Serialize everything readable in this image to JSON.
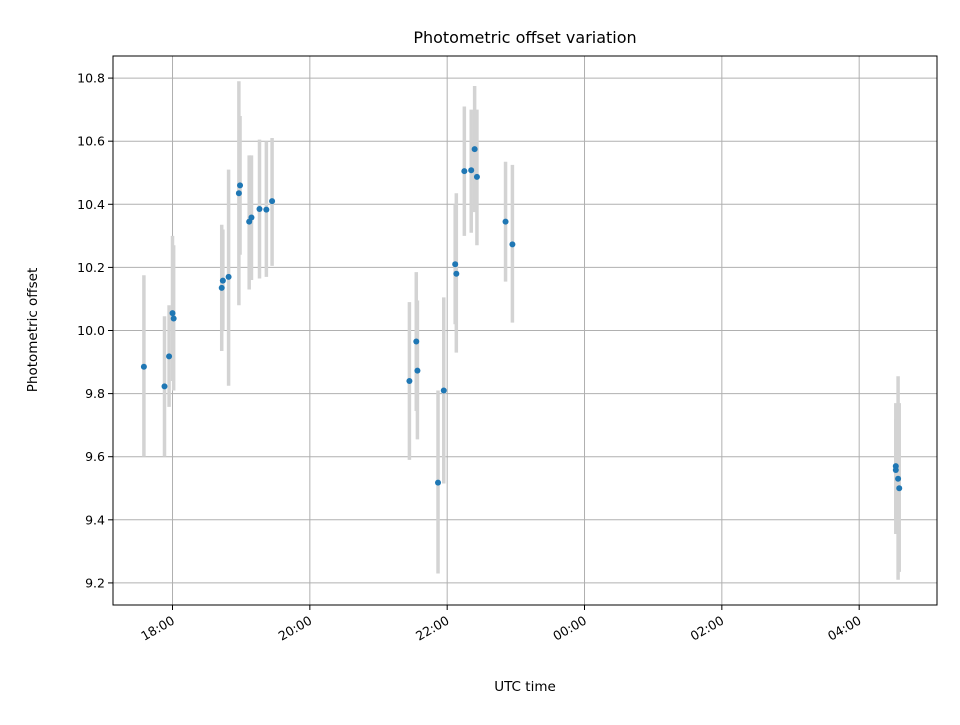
{
  "chart_data": {
    "type": "scatter",
    "title": "Photometric offset variation",
    "xlabel": "UTC time",
    "ylabel": "Photometric offset",
    "grid": true,
    "colors": {
      "points": "#1f77b4",
      "errorbars": "#d3d3d3",
      "grid": "#b0b0b0"
    },
    "xlim": [
      "17:08",
      "05:08"
    ],
    "ylim": [
      9.13,
      10.87
    ],
    "x_ticks": [
      "18:00",
      "20:00",
      "22:00",
      "00:00",
      "02:00",
      "04:00"
    ],
    "y_ticks": [
      "9.2",
      "9.4",
      "9.6",
      "9.8",
      "10.0",
      "10.2",
      "10.4",
      "10.6",
      "10.8"
    ],
    "series": [
      {
        "points": [
          {
            "x": "17:35",
            "y": 9.885,
            "yerr_low": 9.6,
            "yerr_high": 10.175
          },
          {
            "x": "17:53",
            "y": 9.823,
            "yerr_low": 9.6,
            "yerr_high": 10.045
          },
          {
            "x": "17:57",
            "y": 9.918,
            "yerr_low": 9.758,
            "yerr_high": 10.08
          },
          {
            "x": "18:00",
            "y": 10.055,
            "yerr_low": 9.84,
            "yerr_high": 10.3
          },
          {
            "x": "18:01",
            "y": 10.038,
            "yerr_low": 9.81,
            "yerr_high": 10.27
          },
          {
            "x": "18:43",
            "y": 10.135,
            "yerr_low": 9.935,
            "yerr_high": 10.335
          },
          {
            "x": "18:44",
            "y": 10.158,
            "yerr_low": 10.0,
            "yerr_high": 10.32
          },
          {
            "x": "18:49",
            "y": 10.17,
            "yerr_low": 9.825,
            "yerr_high": 10.51
          },
          {
            "x": "18:58",
            "y": 10.435,
            "yerr_low": 10.08,
            "yerr_high": 10.79
          },
          {
            "x": "18:59",
            "y": 10.46,
            "yerr_low": 10.24,
            "yerr_high": 10.68
          },
          {
            "x": "19:07",
            "y": 10.345,
            "yerr_low": 10.13,
            "yerr_high": 10.555
          },
          {
            "x": "19:09",
            "y": 10.358,
            "yerr_low": 10.16,
            "yerr_high": 10.555
          },
          {
            "x": "19:16",
            "y": 10.385,
            "yerr_low": 10.165,
            "yerr_high": 10.605
          },
          {
            "x": "19:22",
            "y": 10.383,
            "yerr_low": 10.17,
            "yerr_high": 10.6
          },
          {
            "x": "19:27",
            "y": 10.41,
            "yerr_low": 10.205,
            "yerr_high": 10.61
          },
          {
            "x": "21:27",
            "y": 9.84,
            "yerr_low": 9.59,
            "yerr_high": 10.09
          },
          {
            "x": "21:33",
            "y": 9.965,
            "yerr_low": 9.745,
            "yerr_high": 10.185
          },
          {
            "x": "21:34",
            "y": 9.873,
            "yerr_low": 9.655,
            "yerr_high": 10.095
          },
          {
            "x": "21:52",
            "y": 9.518,
            "yerr_low": 9.23,
            "yerr_high": 9.81
          },
          {
            "x": "21:57",
            "y": 9.81,
            "yerr_low": 9.515,
            "yerr_high": 10.105
          },
          {
            "x": "22:07",
            "y": 10.21,
            "yerr_low": 10.02,
            "yerr_high": 10.4
          },
          {
            "x": "22:08",
            "y": 10.18,
            "yerr_low": 9.93,
            "yerr_high": 10.435
          },
          {
            "x": "22:15",
            "y": 10.505,
            "yerr_low": 10.3,
            "yerr_high": 10.71
          },
          {
            "x": "22:21",
            "y": 10.508,
            "yerr_low": 10.31,
            "yerr_high": 10.7
          },
          {
            "x": "22:24",
            "y": 10.575,
            "yerr_low": 10.375,
            "yerr_high": 10.775
          },
          {
            "x": "22:26",
            "y": 10.487,
            "yerr_low": 10.27,
            "yerr_high": 10.7
          },
          {
            "x": "22:51",
            "y": 10.345,
            "yerr_low": 10.155,
            "yerr_high": 10.535
          },
          {
            "x": "22:57",
            "y": 10.273,
            "yerr_low": 10.025,
            "yerr_high": 10.525
          },
          {
            "x": "04:32",
            "y": 9.57,
            "yerr_low": 9.355,
            "yerr_high": 9.77
          },
          {
            "x": "04:32",
            "y": 9.558,
            "yerr_low": 9.4,
            "yerr_high": 9.72
          },
          {
            "x": "04:34",
            "y": 9.53,
            "yerr_low": 9.21,
            "yerr_high": 9.855
          },
          {
            "x": "04:35",
            "y": 9.5,
            "yerr_low": 9.235,
            "yerr_high": 9.77
          }
        ]
      }
    ]
  }
}
